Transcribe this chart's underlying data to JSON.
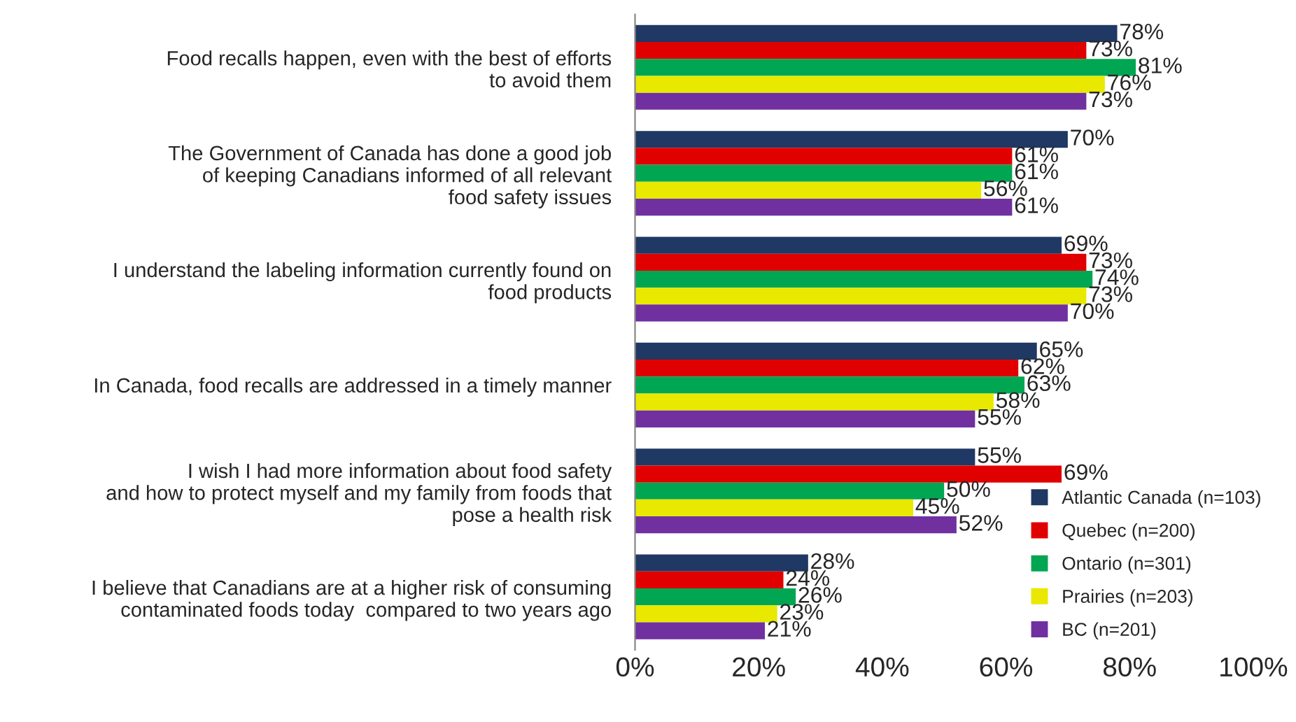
{
  "chart_data": {
    "type": "bar",
    "orientation": "horizontal",
    "categories": [
      "Food recalls happen, even with the best of efforts\nto avoid them",
      "The Government of Canada has done a good job\nof keeping Canadians informed of all relevant\nfood safety issues",
      "I understand the labeling information currently found on\nfood products",
      "In Canada, food recalls are addressed in a timely manner",
      "I wish I had more information about food safety\nand how to protect myself and my family from foods that\npose a health risk",
      "I believe that Canadians are at a higher risk of consuming\ncontaminated foods today  compared to two years ago"
    ],
    "series": [
      {
        "name": "Atlantic Canada (n=103)",
        "color": "#1f3864",
        "values": [
          78,
          70,
          69,
          65,
          55,
          28
        ],
        "value_labels": [
          "78%",
          "70%",
          "69%",
          "65%",
          "55%",
          "28%"
        ]
      },
      {
        "name": "Quebec (n=200)",
        "color": "#e00000",
        "values": [
          73,
          61,
          73,
          62,
          69,
          24
        ],
        "value_labels": [
          "73%",
          "61%",
          "73%",
          "62%",
          "69%",
          "24%"
        ]
      },
      {
        "name": "Ontario (n=301)",
        "color": "#00a651",
        "values": [
          81,
          61,
          74,
          63,
          50,
          26
        ],
        "value_labels": [
          "81%",
          "61%",
          "74%",
          "63%",
          "50%",
          "26%"
        ]
      },
      {
        "name": "Prairies (n=203)",
        "color": "#e8e800",
        "values": [
          76,
          56,
          73,
          58,
          45,
          23
        ],
        "value_labels": [
          "76%",
          "56%",
          "73%",
          "58%",
          "45%",
          "23%"
        ]
      },
      {
        "name": "BC (n=201)",
        "color": "#7030a0",
        "values": [
          73,
          61,
          70,
          55,
          52,
          21
        ],
        "value_labels": [
          "73%",
          "61%",
          "70%",
          "55%",
          "52%",
          "21%"
        ]
      }
    ],
    "xlim": [
      0,
      100
    ],
    "xticks": [
      {
        "value": 0,
        "label": "0%"
      },
      {
        "value": 20,
        "label": "20%"
      },
      {
        "value": 40,
        "label": "40%"
      },
      {
        "value": 60,
        "label": "60%"
      },
      {
        "value": 80,
        "label": "80%"
      },
      {
        "value": 100,
        "label": "100%"
      }
    ],
    "grid": false,
    "legend": "bottom right"
  }
}
